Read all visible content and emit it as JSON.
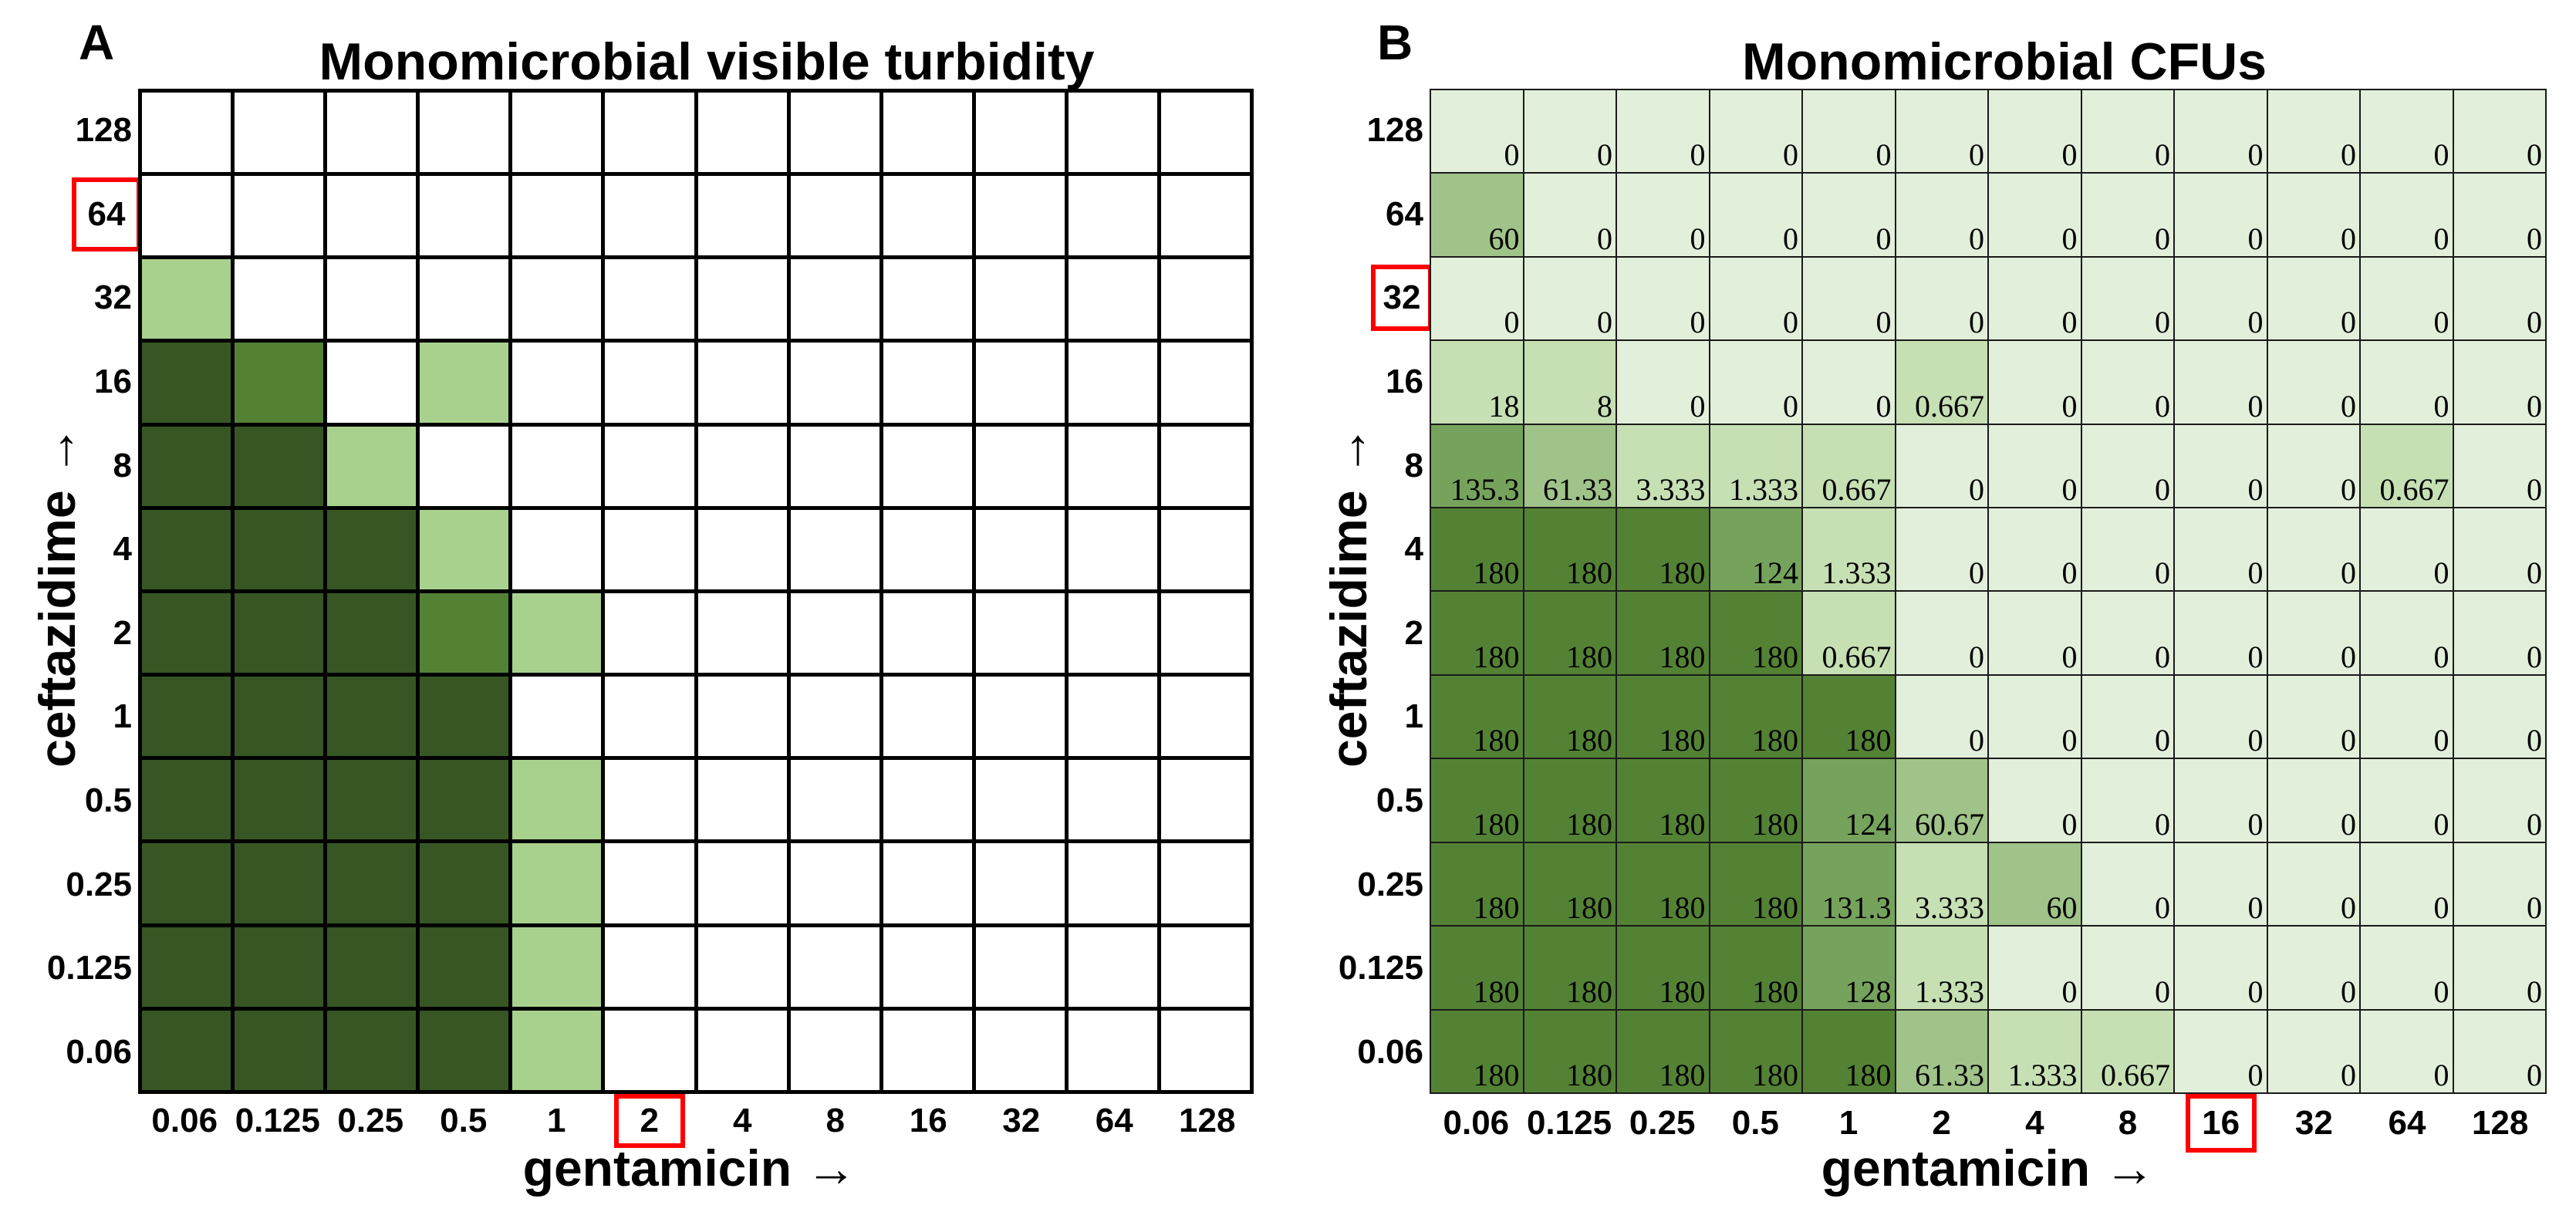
{
  "chart_data": [
    {
      "type": "heatmap",
      "panel_label": "A",
      "title": "Monomicrobial visible turbidity",
      "xlabel": "gentamicin →",
      "ylabel": "ceftazidime →",
      "x_ticks": [
        "0.06",
        "0.125",
        "0.25",
        "0.5",
        "1",
        "2",
        "4",
        "8",
        "16",
        "32",
        "64",
        "128"
      ],
      "y_ticks": [
        "128",
        "64",
        "32",
        "16",
        "8",
        "4",
        "2",
        "1",
        "0.5",
        "0.25",
        "0.125",
        "0.06"
      ],
      "highlight_x_index": 5,
      "highlight_y_index": 1,
      "highlight_color": "#ff0000",
      "level_colors": [
        "#ffffff",
        "#a9d18e",
        "#548235",
        "#375623"
      ],
      "levels": [
        [
          0,
          0,
          0,
          0,
          0,
          0,
          0,
          0,
          0,
          0,
          0,
          0
        ],
        [
          0,
          0,
          0,
          0,
          0,
          0,
          0,
          0,
          0,
          0,
          0,
          0
        ],
        [
          1,
          0,
          0,
          0,
          0,
          0,
          0,
          0,
          0,
          0,
          0,
          0
        ],
        [
          3,
          2,
          0,
          1,
          0,
          0,
          0,
          0,
          0,
          0,
          0,
          0
        ],
        [
          3,
          3,
          1,
          0,
          0,
          0,
          0,
          0,
          0,
          0,
          0,
          0
        ],
        [
          3,
          3,
          3,
          1,
          0,
          0,
          0,
          0,
          0,
          0,
          0,
          0
        ],
        [
          3,
          3,
          3,
          2,
          1,
          0,
          0,
          0,
          0,
          0,
          0,
          0
        ],
        [
          3,
          3,
          3,
          3,
          0,
          0,
          0,
          0,
          0,
          0,
          0,
          0
        ],
        [
          3,
          3,
          3,
          3,
          1,
          0,
          0,
          0,
          0,
          0,
          0,
          0
        ],
        [
          3,
          3,
          3,
          3,
          1,
          0,
          0,
          0,
          0,
          0,
          0,
          0
        ],
        [
          3,
          3,
          3,
          3,
          1,
          0,
          0,
          0,
          0,
          0,
          0,
          0
        ],
        [
          3,
          3,
          3,
          3,
          1,
          0,
          0,
          0,
          0,
          0,
          0,
          0
        ]
      ]
    },
    {
      "type": "heatmap",
      "panel_label": "B",
      "title": "Monomicrobial CFUs",
      "xlabel": "gentamicin →",
      "ylabel": "ceftazidime →",
      "x_ticks": [
        "0.06",
        "0.125",
        "0.25",
        "0.5",
        "1",
        "2",
        "4",
        "8",
        "16",
        "32",
        "64",
        "128"
      ],
      "y_ticks": [
        "128",
        "64",
        "32",
        "16",
        "8",
        "4",
        "2",
        "1",
        "0.5",
        "0.25",
        "0.125",
        "0.06"
      ],
      "highlight_x_index": 8,
      "highlight_y_index": 2,
      "highlight_color": "#ff0000",
      "color_bins": [
        {
          "max": 0,
          "color": "#e2efda"
        },
        {
          "max": 20,
          "color": "#c6e0b4"
        },
        {
          "max": 100,
          "color": "#a0c38a"
        },
        {
          "max": 170,
          "color": "#76a35c"
        },
        {
          "max": 100000,
          "color": "#548235"
        }
      ],
      "values": [
        [
          0,
          0,
          0,
          0,
          0,
          0,
          0,
          0,
          0,
          0,
          0,
          0
        ],
        [
          60,
          0,
          0,
          0,
          0,
          0,
          0,
          0,
          0,
          0,
          0,
          0
        ],
        [
          0,
          0,
          0,
          0,
          0,
          0,
          0,
          0,
          0,
          0,
          0,
          0
        ],
        [
          18,
          8,
          0,
          0,
          0,
          0.667,
          0,
          0,
          0,
          0,
          0,
          0
        ],
        [
          135.3,
          61.33,
          3.333,
          1.333,
          0.667,
          0,
          0,
          0,
          0,
          0,
          0.667,
          0
        ],
        [
          180,
          180,
          180,
          124,
          1.333,
          0,
          0,
          0,
          0,
          0,
          0,
          0
        ],
        [
          180,
          180,
          180,
          180,
          0.667,
          0,
          0,
          0,
          0,
          0,
          0,
          0
        ],
        [
          180,
          180,
          180,
          180,
          180,
          0,
          0,
          0,
          0,
          0,
          0,
          0
        ],
        [
          180,
          180,
          180,
          180,
          124,
          60.67,
          0,
          0,
          0,
          0,
          0,
          0
        ],
        [
          180,
          180,
          180,
          180,
          131.3,
          3.333,
          60,
          0,
          0,
          0,
          0,
          0
        ],
        [
          180,
          180,
          180,
          180,
          128,
          1.333,
          0,
          0,
          0,
          0,
          0,
          0
        ],
        [
          180,
          180,
          180,
          180,
          180,
          61.33,
          1.333,
          0.667,
          0,
          0,
          0,
          0
        ]
      ]
    }
  ]
}
